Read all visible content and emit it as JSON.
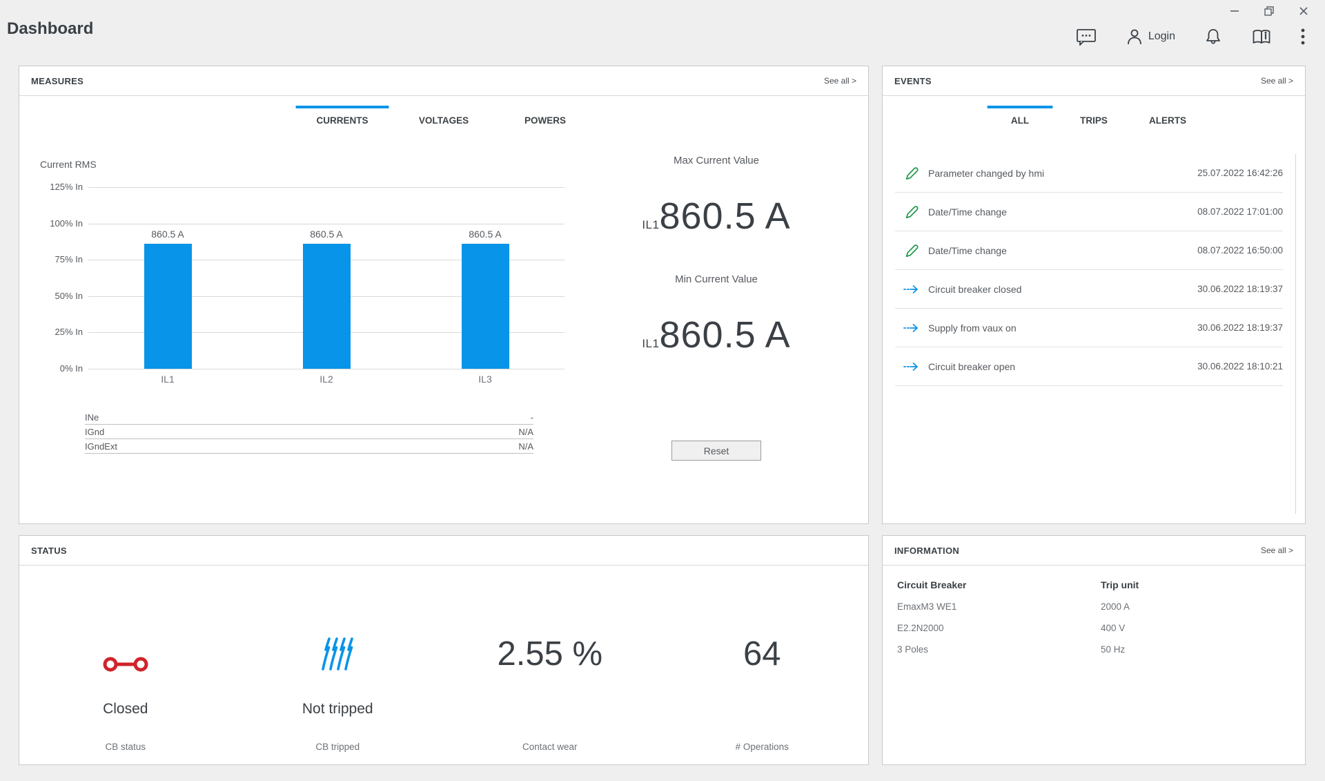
{
  "colors": {
    "accent_blue": "#0894e8",
    "status_red": "#d0232b",
    "event_green": "#21984c",
    "text_dark": "#3f454b"
  },
  "header": {
    "title": "Dashboard",
    "login_label": "Login"
  },
  "measures": {
    "title": "MEASURES",
    "see_all": "See all >",
    "tabs": [
      {
        "label": "CURRENTS"
      },
      {
        "label": "VOLTAGES"
      },
      {
        "label": "POWERS"
      }
    ],
    "active_tab": "CURRENTS",
    "max_caption": "Max Current Value",
    "max_prefix": "IL1",
    "max_value": "860.5 A",
    "min_caption": "Min Current Value",
    "min_prefix": "IL1",
    "min_value": "860.5 A",
    "reset_label": "Reset",
    "aux_table": [
      {
        "name": "INe",
        "value": "-"
      },
      {
        "name": "IGnd",
        "value": "N/A"
      },
      {
        "name": "IGndExt",
        "value": "N/A"
      }
    ]
  },
  "chart_data": {
    "type": "bar",
    "title": "Current RMS",
    "categories": [
      "IL1",
      "IL2",
      "IL3"
    ],
    "values": [
      860.5,
      860.5,
      860.5
    ],
    "unit": "A",
    "value_labels": [
      "860.5 A",
      "860.5 A",
      "860.5 A"
    ],
    "values_percent_of_in": [
      86.05,
      86.05,
      86.05
    ],
    "ylim_percent_in": [
      0,
      125
    ],
    "y_ticks": [
      "125% In",
      "100% In",
      "75% In",
      "50% In",
      "25% In",
      "0% In"
    ],
    "grid": true,
    "bar_color": "#0894e8",
    "legend": "none"
  },
  "events": {
    "title": "EVENTS",
    "see_all": "See all >",
    "tabs": [
      {
        "label": "ALL"
      },
      {
        "label": "TRIPS"
      },
      {
        "label": "ALERTS"
      }
    ],
    "active_tab": "ALL",
    "items": [
      {
        "icon": "pencil",
        "label": "Parameter changed by hmi",
        "timestamp": "25.07.2022 16:42:26"
      },
      {
        "icon": "pencil",
        "label": "Date/Time change",
        "timestamp": "08.07.2022 17:01:00"
      },
      {
        "icon": "pencil",
        "label": "Date/Time change",
        "timestamp": "08.07.2022 16:50:00"
      },
      {
        "icon": "arrow",
        "label": "Circuit breaker closed",
        "timestamp": "30.06.2022 18:19:37"
      },
      {
        "icon": "arrow",
        "label": "Supply from vaux on",
        "timestamp": "30.06.2022 18:19:37"
      },
      {
        "icon": "arrow",
        "label": "Circuit breaker open",
        "timestamp": "30.06.2022 18:10:21"
      }
    ]
  },
  "status": {
    "title": "STATUS",
    "cb_status": {
      "value": "Closed",
      "label": "CB status"
    },
    "cb_tripped": {
      "value": "Not tripped",
      "label": "CB tripped"
    },
    "contact_wear": {
      "value": "2.55 %",
      "label": "Contact wear"
    },
    "operations": {
      "value": "64",
      "label": "# Operations"
    }
  },
  "information": {
    "title": "INFORMATION",
    "see_all": "See all >",
    "col1": {
      "header": "Circuit Breaker",
      "rows": [
        "EmaxM3 WE1",
        "E2.2N2000",
        "3 Poles"
      ]
    },
    "col2": {
      "header": "Trip unit",
      "rows": [
        "2000 A",
        "400 V",
        "50 Hz"
      ]
    }
  }
}
